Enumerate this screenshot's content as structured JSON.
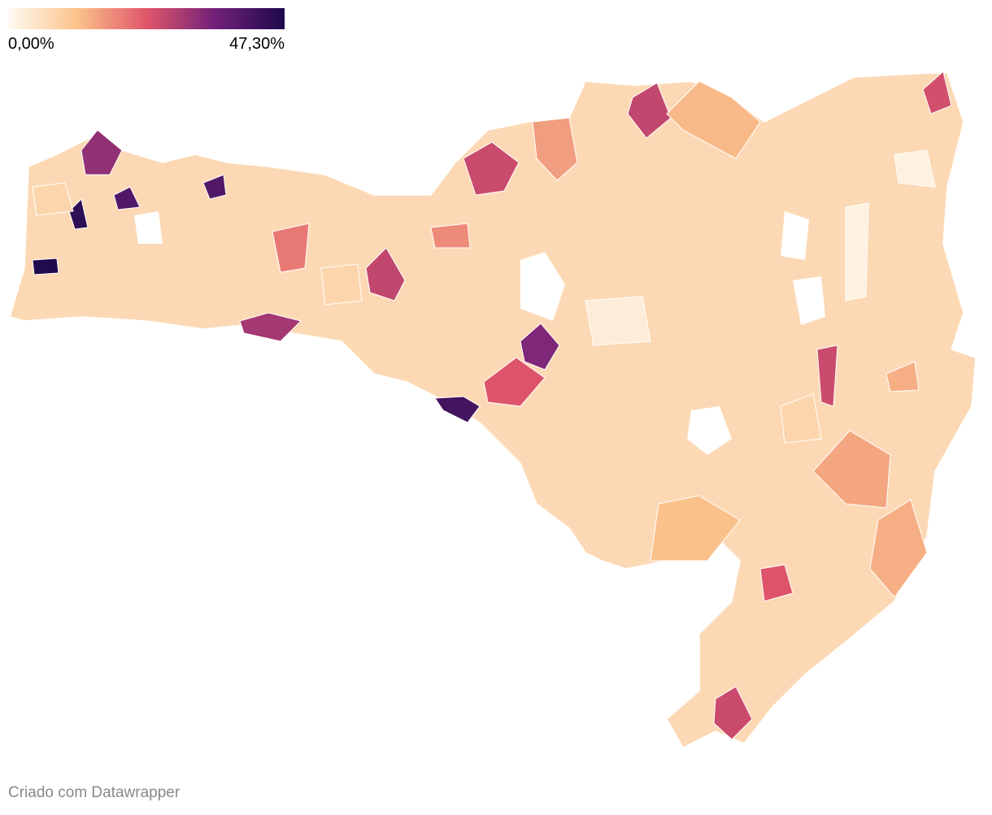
{
  "chart_data": {
    "type": "choropleth",
    "legend": {
      "ticks": [
        {
          "value": 0,
          "label": "0,00%"
        },
        {
          "value": 47.3,
          "label": "47,30%"
        }
      ],
      "colors": [
        "#fefaf3",
        "#fbc38a",
        "#e0566a",
        "#71207a",
        "#1e0a4b"
      ]
    },
    "regions": {
      "values": [
        47,
        45,
        40,
        40,
        42,
        32,
        34,
        30,
        26,
        27,
        25,
        26,
        27,
        24,
        24,
        26,
        20,
        18,
        16,
        15,
        14,
        14,
        13,
        12,
        3,
        2,
        2,
        8,
        8,
        8
      ]
    },
    "footer": "Criado com Datawrapper"
  }
}
